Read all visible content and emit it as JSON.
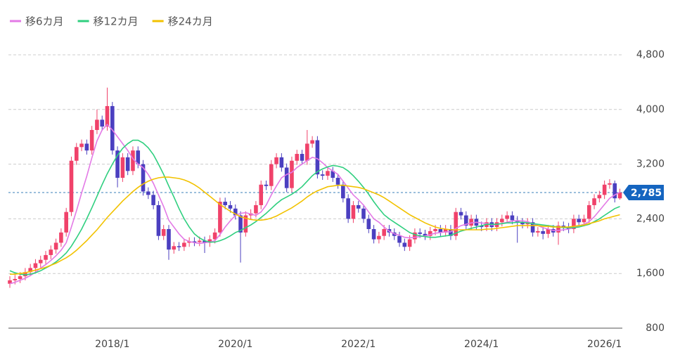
{
  "chart_data": {
    "type": "candlestick",
    "categories": [
      null,
      null,
      null,
      null,
      null,
      null,
      null,
      null,
      null,
      null,
      null,
      null,
      null,
      null,
      null,
      null,
      null,
      null,
      null,
      null,
      "2018/1",
      null,
      null,
      null,
      null,
      null,
      null,
      null,
      null,
      null,
      null,
      null,
      null,
      null,
      null,
      null,
      null,
      null,
      null,
      null,
      null,
      null,
      null,
      null,
      "2020/1",
      null,
      null,
      null,
      null,
      null,
      null,
      null,
      null,
      null,
      null,
      null,
      null,
      null,
      null,
      null,
      null,
      null,
      null,
      null,
      null,
      null,
      null,
      null,
      "2022/1",
      null,
      null,
      null,
      null,
      null,
      null,
      null,
      null,
      null,
      null,
      null,
      null,
      null,
      null,
      null,
      null,
      null,
      null,
      null,
      null,
      null,
      null,
      null,
      "2024/1",
      null,
      null,
      null,
      null,
      null,
      null,
      null,
      null,
      null,
      null,
      null,
      null,
      null,
      null,
      null,
      null,
      null,
      null,
      null,
      null,
      null,
      null,
      null,
      "2026/1",
      null,
      null,
      null
    ],
    "open": [
      1450,
      1500,
      1520,
      1560,
      1620,
      1680,
      1750,
      1800,
      1870,
      1950,
      2050,
      2200,
      2500,
      3250,
      3450,
      3500,
      3400,
      3700,
      3850,
      3750,
      4050,
      3400,
      3000,
      3300,
      3100,
      3400,
      3200,
      2800,
      2750,
      2600,
      2150,
      2250,
      1950,
      2000,
      1990,
      2050,
      2070,
      2060,
      2080,
      2050,
      2100,
      2200,
      2650,
      2600,
      2550,
      2450,
      2200,
      2450,
      2480,
      2600,
      2900,
      2880,
      3200,
      3300,
      3150,
      2850,
      3250,
      3350,
      3250,
      3500,
      3550,
      3050,
      3030,
      3100,
      3000,
      2900,
      2700,
      2400,
      2600,
      2550,
      2400,
      2250,
      2100,
      2150,
      2250,
      2200,
      2150,
      2050,
      1990,
      2100,
      2200,
      2180,
      2150,
      2220,
      2250,
      2200,
      2250,
      2150,
      2500,
      2450,
      2300,
      2400,
      2300,
      2280,
      2350,
      2280,
      2350,
      2400,
      2450,
      2380,
      2350,
      2320,
      2350,
      2200,
      2220,
      2180,
      2250,
      2200,
      2300,
      2280,
      2250,
      2400,
      2350,
      2400,
      2600,
      2700,
      2750,
      2900,
      2920,
      2700
    ],
    "high": [
      1560,
      1580,
      1620,
      1680,
      1740,
      1810,
      1860,
      1930,
      2010,
      2110,
      2260,
      2560,
      3310,
      3510,
      3560,
      3560,
      3760,
      4000,
      3910,
      4320,
      4110,
      3460,
      3360,
      3360,
      3460,
      3460,
      3260,
      2860,
      2810,
      2660,
      2310,
      2310,
      2060,
      2060,
      2110,
      2130,
      2130,
      2140,
      2140,
      2160,
      2260,
      2710,
      2710,
      2660,
      2610,
      2510,
      2510,
      2540,
      2660,
      2960,
      2960,
      3260,
      3360,
      3360,
      3210,
      3310,
      3410,
      3410,
      3700,
      3610,
      3610,
      3110,
      3160,
      3160,
      3060,
      2960,
      2760,
      2660,
      2660,
      2610,
      2460,
      2310,
      2210,
      2310,
      2310,
      2260,
      2210,
      2110,
      2160,
      2260,
      2260,
      2240,
      2280,
      2310,
      2310,
      2310,
      2310,
      2560,
      2560,
      2510,
      2460,
      2460,
      2360,
      2410,
      2410,
      2410,
      2460,
      2510,
      2510,
      2440,
      2410,
      2410,
      2410,
      2280,
      2280,
      2310,
      2310,
      2360,
      2360,
      2340,
      2460,
      2460,
      2460,
      2660,
      2760,
      2810,
      2960,
      2980,
      2960,
      2840
    ],
    "low": [
      1390,
      1440,
      1460,
      1500,
      1560,
      1620,
      1690,
      1740,
      1810,
      1890,
      1990,
      2140,
      2440,
      3190,
      3390,
      3340,
      3340,
      3640,
      3690,
      3690,
      3340,
      2860,
      2940,
      3040,
      3040,
      3140,
      2740,
      2690,
      2540,
      2090,
      2090,
      1800,
      1890,
      1930,
      1930,
      1990,
      2000,
      2000,
      1900,
      1990,
      2040,
      2140,
      2540,
      2490,
      2390,
      1760,
      2140,
      2390,
      2420,
      2540,
      2820,
      2820,
      3140,
      3090,
      2790,
      2790,
      3190,
      3190,
      3190,
      3440,
      2990,
      2970,
      2970,
      2940,
      2840,
      2640,
      2340,
      2340,
      2490,
      2340,
      2190,
      2040,
      2040,
      2090,
      2140,
      2090,
      1990,
      1930,
      1930,
      2040,
      2120,
      2090,
      2090,
      2160,
      2140,
      2140,
      2090,
      2090,
      2390,
      2240,
      2240,
      2240,
      2220,
      2220,
      2220,
      2220,
      2290,
      2340,
      2320,
      2050,
      2260,
      2260,
      2140,
      2140,
      2100,
      2120,
      2140,
      2020,
      2220,
      2190,
      2190,
      2290,
      2290,
      2340,
      2540,
      2640,
      2690,
      2840,
      2640,
      2680
    ],
    "close": [
      1500,
      1520,
      1560,
      1620,
      1680,
      1750,
      1800,
      1870,
      1950,
      2050,
      2200,
      2500,
      3250,
      3450,
      3500,
      3400,
      3700,
      3850,
      3750,
      4050,
      3400,
      3000,
      3300,
      3100,
      3400,
      3200,
      2800,
      2750,
      2600,
      2150,
      2250,
      1950,
      2000,
      1990,
      2050,
      2070,
      2060,
      2080,
      2050,
      2100,
      2200,
      2650,
      2600,
      2550,
      2450,
      2200,
      2450,
      2480,
      2600,
      2900,
      2880,
      3200,
      3300,
      3150,
      2850,
      3250,
      3350,
      3250,
      3500,
      3550,
      3050,
      3030,
      3100,
      3000,
      2900,
      2700,
      2400,
      2600,
      2550,
      2400,
      2250,
      2100,
      2150,
      2250,
      2200,
      2150,
      2050,
      1990,
      2100,
      2200,
      2180,
      2150,
      2220,
      2250,
      2200,
      2250,
      2150,
      2500,
      2450,
      2300,
      2400,
      2300,
      2280,
      2350,
      2280,
      2350,
      2400,
      2450,
      2380,
      2350,
      2320,
      2350,
      2200,
      2220,
      2180,
      2250,
      2200,
      2300,
      2280,
      2250,
      2400,
      2350,
      2400,
      2600,
      2700,
      2750,
      2900,
      2920,
      2700,
      2785
    ],
    "up_color": "#f0426a",
    "down_color": "#4b3fc0",
    "series": [
      {
        "name": "移6カ月",
        "color": "#e37ae6",
        "values": [
          1450,
          1470,
          1500,
          1530,
          1570,
          1620,
          1680,
          1730,
          1790,
          1860,
          1940,
          2050,
          2280,
          2520,
          2780,
          3020,
          3290,
          3540,
          3700,
          3780,
          3700,
          3600,
          3500,
          3400,
          3280,
          3200,
          3150,
          3050,
          2920,
          2750,
          2580,
          2380,
          2280,
          2180,
          2100,
          2070,
          2050,
          2040,
          2050,
          2060,
          2080,
          2170,
          2280,
          2370,
          2450,
          2480,
          2490,
          2470,
          2450,
          2500,
          2600,
          2750,
          2880,
          3000,
          3050,
          3080,
          3150,
          3200,
          3250,
          3300,
          3280,
          3220,
          3150,
          3100,
          3050,
          2950,
          2850,
          2750,
          2680,
          2600,
          2500,
          2400,
          2350,
          2280,
          2220,
          2180,
          2160,
          2130,
          2120,
          2130,
          2140,
          2150,
          2170,
          2190,
          2200,
          2210,
          2210,
          2260,
          2300,
          2320,
          2340,
          2350,
          2340,
          2330,
          2310,
          2320,
          2330,
          2350,
          2370,
          2370,
          2370,
          2360,
          2330,
          2300,
          2270,
          2250,
          2230,
          2230,
          2240,
          2250,
          2270,
          2300,
          2320,
          2360,
          2430,
          2520,
          2610,
          2700,
          2750,
          2790
        ]
      },
      {
        "name": "移12カ月",
        "color": "#2fcf7f",
        "values": [
          1640,
          1610,
          1590,
          1580,
          1590,
          1610,
          1640,
          1680,
          1720,
          1770,
          1830,
          1900,
          2000,
          2120,
          2250,
          2400,
          2560,
          2730,
          2900,
          3060,
          3200,
          3330,
          3430,
          3500,
          3550,
          3550,
          3510,
          3440,
          3340,
          3200,
          3050,
          2880,
          2720,
          2550,
          2400,
          2280,
          2180,
          2120,
          2080,
          2060,
          2060,
          2080,
          2110,
          2150,
          2200,
          2230,
          2270,
          2310,
          2360,
          2420,
          2480,
          2550,
          2620,
          2680,
          2720,
          2760,
          2810,
          2870,
          2950,
          3030,
          3090,
          3130,
          3160,
          3180,
          3170,
          3150,
          3100,
          3030,
          2950,
          2860,
          2760,
          2650,
          2550,
          2460,
          2400,
          2350,
          2300,
          2250,
          2200,
          2170,
          2150,
          2140,
          2130,
          2130,
          2140,
          2150,
          2160,
          2190,
          2220,
          2240,
          2260,
          2280,
          2300,
          2320,
          2320,
          2320,
          2330,
          2340,
          2340,
          2350,
          2350,
          2340,
          2330,
          2320,
          2310,
          2300,
          2290,
          2280,
          2270,
          2270,
          2270,
          2280,
          2300,
          2320,
          2360,
          2400,
          2450,
          2500,
          2550,
          2580
        ]
      },
      {
        "name": "移24カ月",
        "color": "#f2c200",
        "values": [
          1590,
          1590,
          1600,
          1610,
          1630,
          1650,
          1670,
          1690,
          1720,
          1750,
          1790,
          1830,
          1880,
          1940,
          2010,
          2080,
          2160,
          2240,
          2330,
          2420,
          2500,
          2580,
          2660,
          2730,
          2800,
          2860,
          2910,
          2950,
          2980,
          3000,
          3010,
          3010,
          3000,
          2990,
          2970,
          2940,
          2900,
          2850,
          2790,
          2730,
          2670,
          2610,
          2560,
          2510,
          2470,
          2430,
          2410,
          2390,
          2380,
          2380,
          2390,
          2410,
          2440,
          2480,
          2520,
          2560,
          2610,
          2660,
          2720,
          2770,
          2810,
          2840,
          2870,
          2880,
          2890,
          2890,
          2880,
          2870,
          2860,
          2840,
          2810,
          2780,
          2750,
          2710,
          2660,
          2610,
          2560,
          2510,
          2460,
          2420,
          2380,
          2340,
          2310,
          2280,
          2260,
          2250,
          2240,
          2240,
          2240,
          2240,
          2240,
          2240,
          2240,
          2250,
          2250,
          2260,
          2270,
          2280,
          2290,
          2300,
          2300,
          2300,
          2300,
          2300,
          2290,
          2290,
          2280,
          2280,
          2280,
          2280,
          2290,
          2300,
          2310,
          2330,
          2350,
          2370,
          2400,
          2420,
          2440,
          2460
        ]
      }
    ],
    "last_price": {
      "value": 2785,
      "label": "2,785"
    },
    "ylim": [
      800,
      4800
    ],
    "yticks": [
      800,
      {
        "value": 1600,
        "label": "1,600"
      },
      {
        "value": 2400,
        "label": "2,400"
      },
      {
        "value": 3200,
        "label": "3,200"
      },
      {
        "value": 4000,
        "label": "4,000"
      },
      {
        "value": 4800,
        "label": "4,800"
      }
    ],
    "grid": true
  }
}
